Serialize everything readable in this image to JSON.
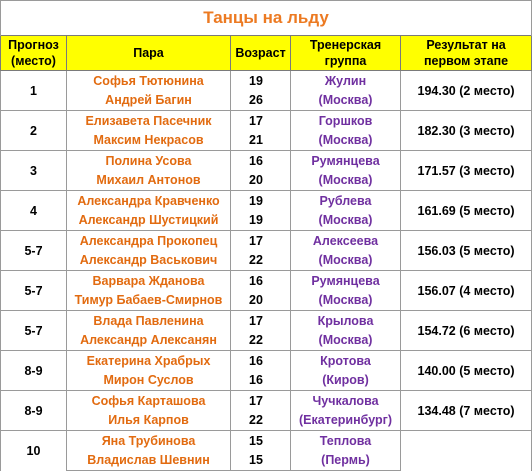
{
  "title": "Танцы на льду",
  "headers": {
    "prognosis": [
      "Прогноз",
      "(место)"
    ],
    "pair": "Пара",
    "age": "Возраст",
    "coach_group": [
      "Тренерская",
      "группа"
    ],
    "result": [
      "Результат на",
      "первом этапе"
    ]
  },
  "rows": [
    {
      "place": "1",
      "names": [
        "Софья Тютюнина",
        "Андрей Багин"
      ],
      "ages": [
        "19",
        "26"
      ],
      "coach": [
        "Жулин",
        "(Москва)"
      ],
      "result": "194.30 (2 место)"
    },
    {
      "place": "2",
      "names": [
        "Елизавета Пасечник",
        "Максим Некрасов"
      ],
      "ages": [
        "17",
        "21"
      ],
      "coach": [
        "Горшков",
        "(Москва)"
      ],
      "result": "182.30 (3 место)"
    },
    {
      "place": "3",
      "names": [
        "Полина Усова",
        "Михаил Антонов"
      ],
      "ages": [
        "16",
        "20"
      ],
      "coach": [
        "Румянцева",
        "(Москва)"
      ],
      "result": "171.57 (3 место)"
    },
    {
      "place": "4",
      "names": [
        "Александра Кравченко",
        "Александр Шустицкий"
      ],
      "ages": [
        "19",
        "19"
      ],
      "coach": [
        "Рублева",
        "(Москва)"
      ],
      "result": "161.69 (5 место)"
    },
    {
      "place": "5-7",
      "names": [
        "Александра Прокопец",
        "Александр Васькович"
      ],
      "ages": [
        "17",
        "22"
      ],
      "coach": [
        "Алексеева",
        "(Москва)"
      ],
      "result": "156.03 (5 место)"
    },
    {
      "place": "5-7",
      "names": [
        "Варвара Жданова",
        "Тимур Бабаев-Смирнов"
      ],
      "ages": [
        "16",
        "20"
      ],
      "coach": [
        "Румянцева",
        "(Москва)"
      ],
      "result": "156.07 (4 место)"
    },
    {
      "place": "5-7",
      "names": [
        "Влада Павленина",
        "Александр Алексанян"
      ],
      "ages": [
        "17",
        "22"
      ],
      "coach": [
        "Крылова",
        "(Москва)"
      ],
      "result": "154.72 (6 место)"
    },
    {
      "place": "8-9",
      "names": [
        "Екатерина Храбрых",
        "Мирон Суслов"
      ],
      "ages": [
        "16",
        "16"
      ],
      "coach": [
        "Кротова",
        "(Киров)"
      ],
      "result": "140.00 (5 место)"
    },
    {
      "place": "8-9",
      "names": [
        "Софья Карташова",
        "Илья Карпов"
      ],
      "ages": [
        "17",
        "22"
      ],
      "coach": [
        "Чучкалова",
        "(Екатеринбург)"
      ],
      "result": "134.48 (7 место)"
    },
    {
      "place": "10",
      "names": [
        "Яна Трубинова",
        "Владислав Шевнин"
      ],
      "ages": [
        "15",
        "15"
      ],
      "coach": [
        "Теплова",
        "(Пермь)"
      ],
      "result": ""
    }
  ]
}
